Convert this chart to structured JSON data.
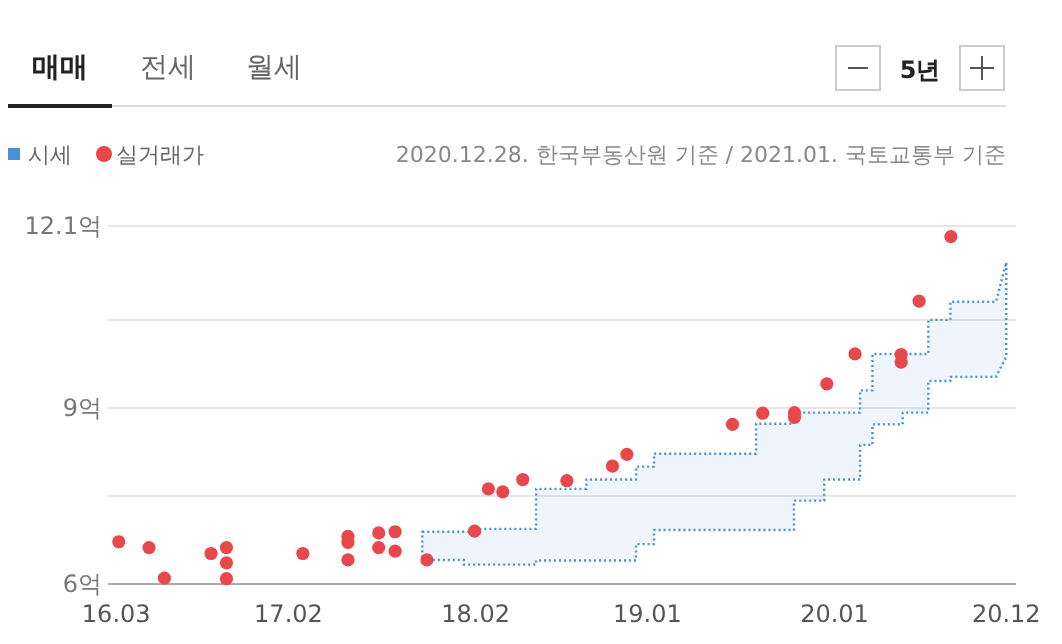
{
  "chart_data": {
    "type": "scatter",
    "annotations": [
      "매매",
      "전세",
      "월세",
      "5년",
      "2020.12.28. 한국부동산원 기준 / 2021.01. 국토교통부 기준"
    ],
    "xlim": [
      "2016-02-29",
      "2021-01-04"
    ],
    "xticks": [
      {
        "value": "2016-03-16",
        "label": "16.03"
      },
      {
        "value": "2017-02-15",
        "label": "17.02"
      },
      {
        "value": "2018-02-15",
        "label": "18.02"
      },
      {
        "value": "2019-01-16",
        "label": "19.01"
      },
      {
        "value": "2020-01-16",
        "label": "20.01"
      },
      {
        "value": "2020-12-16",
        "label": "20.12"
      }
    ],
    "ylim": [
      6,
      12.1
    ],
    "yticks": [
      {
        "value": 6,
        "label": "6억"
      },
      {
        "value": 7.5,
        "label": null
      },
      {
        "value": 9,
        "label": "9억"
      },
      {
        "value": 10.5,
        "label": null
      },
      {
        "value": 12.1,
        "label": "12.1억"
      }
    ],
    "grid": "y",
    "legend": "top left",
    "series": [
      {
        "name": "시세",
        "type": "line",
        "color": "#4a90d9",
        "line_style": "dotted",
        "x": [
          "2017-11-03",
          "2018-01-23",
          "2018-02-24",
          "2018-06-13",
          "2018-09-19",
          "2018-12-25",
          "2019-01-29",
          "2019-08-16",
          "2019-10-29",
          "2019-12-27",
          "2020-03-06",
          "2020-03-30",
          "2020-05-28",
          "2020-07-17",
          "2020-08-29",
          "2020-11-26",
          "2020-12-16"
        ],
        "values": [
          null,
          null,
          null,
          null,
          null,
          null,
          null,
          null,
          null,
          null,
          null,
          null,
          null,
          null,
          null,
          null,
          null
        ],
        "upper": [
          6.89,
          6.89,
          6.94,
          7.62,
          7.78,
          8.0,
          8.22,
          8.73,
          8.92,
          8.92,
          9.3,
          9.92,
          9.92,
          10.5,
          10.81,
          10.81,
          11.48
        ],
        "lower": [
          6.41,
          6.33,
          6.33,
          6.4,
          6.4,
          6.68,
          6.92,
          6.92,
          7.42,
          7.78,
          8.37,
          8.72,
          8.92,
          9.46,
          9.53,
          9.53,
          9.87
        ]
      },
      {
        "name": "실거래가",
        "color": "#e8474c",
        "marker": "circle",
        "x": [
          "2016-03-21",
          "2016-05-19",
          "2016-06-18",
          "2016-09-17",
          "2016-10-17",
          "2016-10-17",
          "2016-10-17",
          "2017-03-15",
          "2017-06-11",
          "2017-06-11",
          "2017-06-11",
          "2017-08-10",
          "2017-08-10",
          "2017-09-11",
          "2017-09-11",
          "2017-11-12",
          "2018-02-13",
          "2018-03-12",
          "2018-04-09",
          "2018-05-18",
          "2018-08-12",
          "2018-11-09",
          "2018-12-07",
          "2019-07-01",
          "2019-08-29",
          "2019-10-30",
          "2019-10-30",
          "2020-01-01",
          "2020-02-25",
          "2020-05-25",
          "2020-05-25",
          "2020-06-29",
          "2020-08-30"
        ],
        "values": [
          6.72,
          6.62,
          6.1,
          6.52,
          6.62,
          6.36,
          6.09,
          6.52,
          6.81,
          6.71,
          6.41,
          6.87,
          6.62,
          6.89,
          6.56,
          6.41,
          6.9,
          7.62,
          7.57,
          7.78,
          7.76,
          8.01,
          8.21,
          8.72,
          8.91,
          8.92,
          8.84,
          9.41,
          9.92,
          9.91,
          9.78,
          10.82,
          11.92
        ]
      }
    ]
  }
}
